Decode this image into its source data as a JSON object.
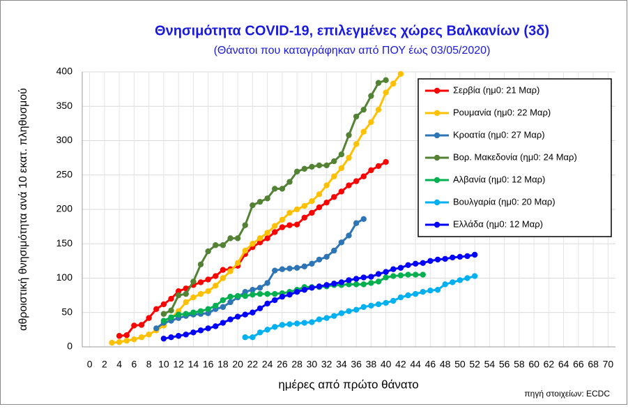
{
  "chart_data": {
    "type": "line",
    "title": "Θνησιμότητα COVID-19, επιλεγμένες χώρες Βαλκανίων (3δ)",
    "subtitle": "(Θάνατοι που καταγράφηκαν από ΠΟΥ έως 03/05/2020)",
    "x_label": "ημέρες από πρώτο θάνατο",
    "y_label": "αθροιστική θνησιμότητα ανά 10 εκατ. πληθυσμού",
    "source": "πηγή στοιχείων: ECDC",
    "xlim": [
      -1,
      71
    ],
    "ylim": [
      0,
      400
    ],
    "xticks": [
      0,
      2,
      4,
      6,
      8,
      10,
      12,
      14,
      16,
      18,
      20,
      22,
      24,
      26,
      28,
      30,
      32,
      34,
      36,
      38,
      40,
      42,
      44,
      46,
      48,
      50,
      52,
      54,
      56,
      58,
      60,
      62,
      64,
      66,
      68,
      70
    ],
    "yticks": [
      0,
      50,
      100,
      150,
      200,
      250,
      300,
      350,
      400
    ],
    "grid": true,
    "legend": "upper right",
    "series": [
      {
        "name": "Σερβία (ημ0: 21 Μαρ)",
        "color": "#ff0000",
        "x": [
          4,
          5,
          6,
          7,
          8,
          9,
          10,
          11,
          12,
          13,
          14,
          15,
          16,
          17,
          18,
          19,
          20,
          21,
          22,
          23,
          24,
          25,
          26,
          27,
          28,
          29,
          30,
          31,
          32,
          33,
          34,
          35,
          36,
          37,
          38,
          39,
          40
        ],
        "values": [
          16,
          17,
          31,
          32,
          42,
          55,
          62,
          70,
          81,
          85,
          90,
          94,
          98,
          103,
          112,
          113,
          118,
          135,
          145,
          152,
          158,
          167,
          174,
          177,
          178,
          188,
          195,
          203,
          210,
          218,
          226,
          235,
          241,
          248,
          257,
          263,
          269
        ]
      },
      {
        "name": "Ρουμανία (ημ0: 22 Μαρ)",
        "color": "#ffc000",
        "x": [
          3,
          4,
          5,
          6,
          7,
          8,
          9,
          10,
          11,
          12,
          13,
          14,
          15,
          16,
          17,
          18,
          19,
          20,
          21,
          22,
          23,
          24,
          25,
          26,
          27,
          28,
          29,
          30,
          31,
          32,
          33,
          34,
          35,
          36,
          37,
          38,
          39,
          40,
          41,
          42
        ],
        "values": [
          6,
          7,
          9,
          11,
          14,
          18,
          24,
          31,
          42,
          52,
          65,
          72,
          77,
          81,
          89,
          100,
          110,
          122,
          140,
          150,
          158,
          166,
          176,
          185,
          195,
          200,
          205,
          212,
          222,
          235,
          248,
          260,
          275,
          295,
          313,
          327,
          345,
          370,
          383,
          397
        ]
      },
      {
        "name": "Κροατία (ημ0: 27 Μαρ)",
        "color": "#2e75b6",
        "x": [
          9,
          10,
          11,
          12,
          13,
          14,
          15,
          16,
          17,
          18,
          19,
          20,
          21,
          22,
          23,
          24,
          25,
          26,
          27,
          28,
          29,
          30,
          31,
          32,
          33,
          34,
          35,
          36,
          37
        ],
        "values": [
          27,
          35,
          38,
          42,
          45,
          47,
          48,
          49,
          55,
          58,
          65,
          72,
          80,
          83,
          86,
          93,
          111,
          113,
          114,
          115,
          117,
          121,
          127,
          131,
          140,
          152,
          162,
          180,
          186
        ]
      },
      {
        "name": "Βορ. Μακεδονία (ημ0: 24 Μαρ)",
        "color": "#548235",
        "x": [
          10,
          11,
          12,
          13,
          14,
          15,
          16,
          17,
          18,
          19,
          20,
          21,
          22,
          23,
          24,
          25,
          26,
          27,
          28,
          29,
          30,
          31,
          32,
          33,
          34,
          35,
          36,
          37,
          38,
          39,
          40
        ],
        "values": [
          48,
          53,
          75,
          77,
          95,
          120,
          139,
          148,
          148,
          158,
          158,
          177,
          206,
          211,
          216,
          230,
          230,
          240,
          255,
          259,
          262,
          264,
          264,
          270,
          280,
          308,
          335,
          345,
          365,
          384,
          388
        ]
      },
      {
        "name": "Αλβανία (ημ0: 12 Μαρ)",
        "color": "#00b050",
        "x": [
          10,
          11,
          12,
          13,
          14,
          15,
          16,
          17,
          18,
          19,
          20,
          21,
          22,
          23,
          24,
          25,
          26,
          27,
          28,
          29,
          30,
          31,
          32,
          33,
          34,
          35,
          36,
          37,
          38,
          39,
          40,
          41,
          42,
          43,
          44,
          45
        ],
        "values": [
          38,
          43,
          47,
          48,
          50,
          52,
          55,
          60,
          68,
          73,
          74,
          74,
          76,
          77,
          77,
          77,
          78,
          80,
          83,
          87,
          87,
          87,
          88,
          90,
          90,
          91,
          91,
          91,
          93,
          95,
          101,
          103,
          104,
          105,
          105,
          105
        ]
      },
      {
        "name": "Βουλγαρία (ημ0: 20 Μαρ)",
        "color": "#00b0f0",
        "x": [
          21,
          22,
          23,
          24,
          25,
          26,
          27,
          28,
          29,
          30,
          31,
          32,
          33,
          34,
          35,
          36,
          37,
          38,
          39,
          40,
          41,
          42,
          43,
          44,
          45,
          46,
          47,
          48,
          49,
          50,
          51,
          52
        ],
        "values": [
          14,
          14,
          21,
          25,
          29,
          32,
          33,
          34,
          35,
          36,
          40,
          42,
          45,
          49,
          52,
          54,
          58,
          60,
          62,
          64,
          67,
          72,
          75,
          77,
          80,
          82,
          83,
          91,
          94,
          97,
          100,
          103
        ]
      },
      {
        "name": "Ελλάδα (ημ0: 12 Μαρ)",
        "color": "#0000ff",
        "x": [
          10,
          11,
          12,
          13,
          14,
          15,
          16,
          17,
          18,
          19,
          20,
          21,
          22,
          23,
          24,
          25,
          26,
          27,
          28,
          29,
          30,
          31,
          32,
          33,
          34,
          35,
          36,
          37,
          38,
          39,
          40,
          41,
          42,
          43,
          44,
          45,
          46,
          47,
          48,
          49,
          50,
          51,
          52
        ],
        "values": [
          12,
          14,
          16,
          18,
          21,
          24,
          27,
          30,
          35,
          40,
          44,
          47,
          50,
          56,
          63,
          68,
          73,
          76,
          80,
          83,
          86,
          88,
          90,
          92,
          94,
          97,
          99,
          101,
          102,
          106,
          109,
          113,
          115,
          119,
          121,
          122,
          125,
          127,
          128,
          130,
          131,
          132,
          134
        ]
      }
    ]
  }
}
